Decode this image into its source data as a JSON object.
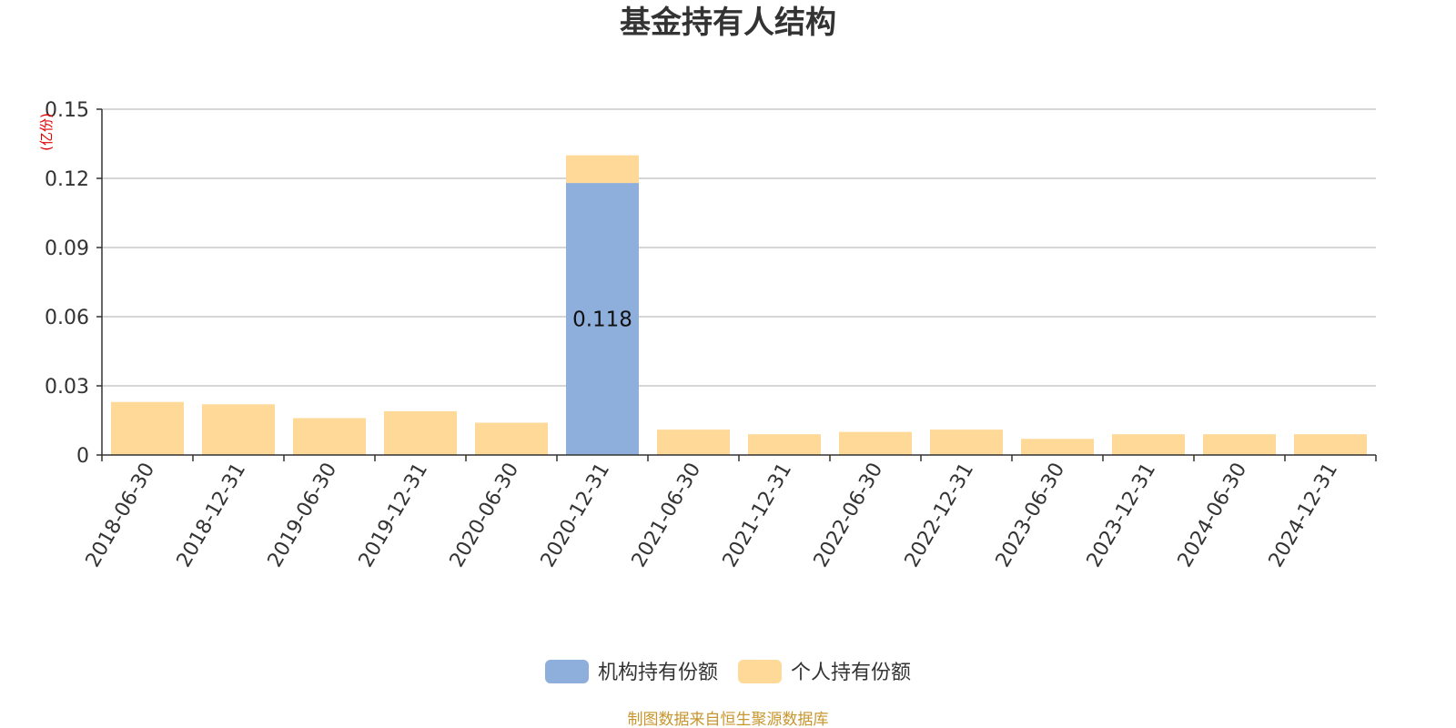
{
  "chart_data": {
    "type": "bar",
    "stacked": true,
    "title": "基金持有人结构",
    "unit_label": "(亿份)",
    "categories": [
      "2018-06-30",
      "2018-12-31",
      "2019-06-30",
      "2019-12-31",
      "2020-06-30",
      "2020-12-31",
      "2021-06-30",
      "2021-12-31",
      "2022-06-30",
      "2022-12-31",
      "2023-06-30",
      "2023-12-31",
      "2024-06-30",
      "2024-12-31"
    ],
    "series": [
      {
        "name": "机构持有份额",
        "color": "#8eaedb",
        "values": [
          0,
          0,
          0,
          0,
          0,
          0.118,
          0,
          0,
          0,
          0,
          0,
          0,
          0,
          0
        ]
      },
      {
        "name": "个人持有份额",
        "color": "#fed998",
        "values": [
          0.023,
          0.022,
          0.016,
          0.019,
          0.014,
          0.012,
          0.011,
          0.009,
          0.01,
          0.011,
          0.007,
          0.009,
          0.009,
          0.009
        ]
      }
    ],
    "data_labels": [
      {
        "series": 0,
        "index": 5,
        "text": "0.118"
      }
    ],
    "ylim": [
      0,
      0.15
    ],
    "yticks": [
      "0",
      "0.03",
      "0.06",
      "0.09",
      "0.12",
      "0.15"
    ],
    "grid": true,
    "legend_position": "bottom-center",
    "source_note": "制图数据来自恒生聚源数据库"
  }
}
